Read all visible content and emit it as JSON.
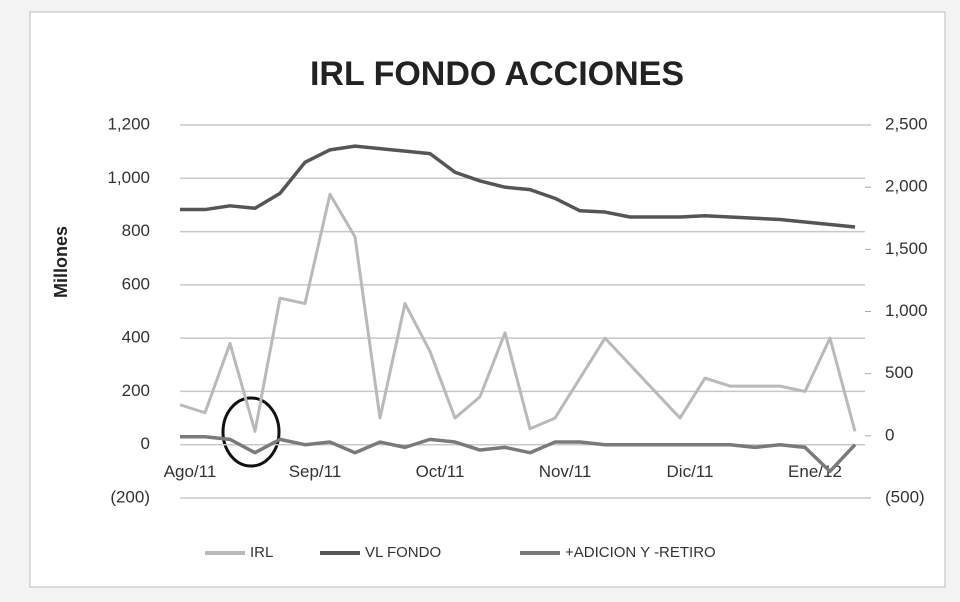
{
  "chart_data": {
    "type": "line",
    "title": "IRL FONDO ACCIONES",
    "y_label": "Millones",
    "categories": [
      "Ago/11",
      null,
      null,
      null,
      null,
      "Sep/11",
      null,
      null,
      null,
      null,
      "Oct/11",
      null,
      null,
      null,
      null,
      "Nov/11",
      null,
      null,
      null,
      null,
      "Dic/11",
      null,
      null,
      null,
      null,
      "Ene/12",
      null,
      null
    ],
    "series": [
      {
        "name": "IRL",
        "color": "#b9b9b9",
        "axis": "y",
        "values": [
          150,
          120,
          380,
          50,
          550,
          530,
          940,
          780,
          100,
          530,
          350,
          100,
          180,
          420,
          60,
          100,
          250,
          400,
          300,
          200,
          100,
          250,
          220,
          220,
          220,
          200,
          400,
          50
        ]
      },
      {
        "name": "VL FONDO",
        "color": "#555555",
        "axis": "y2",
        "values": [
          1820,
          1820,
          1850,
          1830,
          1950,
          2200,
          2300,
          2330,
          2310,
          2290,
          2270,
          2120,
          2050,
          2000,
          1980,
          1910,
          1810,
          1800,
          1760,
          1760,
          1760,
          1770,
          1760,
          1750,
          1740,
          1720,
          1700,
          1680
        ]
      },
      {
        "name": "+ADICION Y -RETIRO",
        "color": "#7a7a7a",
        "axis": "y",
        "values": [
          30,
          30,
          20,
          -30,
          20,
          0,
          10,
          -30,
          10,
          -10,
          20,
          10,
          -20,
          -10,
          -30,
          10,
          10,
          0,
          0,
          0,
          0,
          0,
          0,
          -10,
          0,
          -10,
          -100,
          0
        ]
      }
    ],
    "ylim": [
      -200,
      1200
    ],
    "yticks": [
      {
        "value": -200,
        "label": "(200)"
      },
      0,
      200,
      400,
      600,
      800,
      {
        "value": 1000,
        "label": "1,000"
      },
      {
        "value": 1200,
        "label": "1,200"
      }
    ],
    "y2lim": [
      -500,
      2500
    ],
    "y2ticks": [
      {
        "value": -500,
        "label": "(500)"
      },
      0,
      500,
      {
        "value": 1000,
        "label": "1,000"
      },
      {
        "value": 1500,
        "label": "1,500"
      },
      {
        "value": 2000,
        "label": "2,000"
      },
      {
        "value": 2500,
        "label": "2,500"
      }
    ],
    "grid": true,
    "legend": "bottom"
  }
}
